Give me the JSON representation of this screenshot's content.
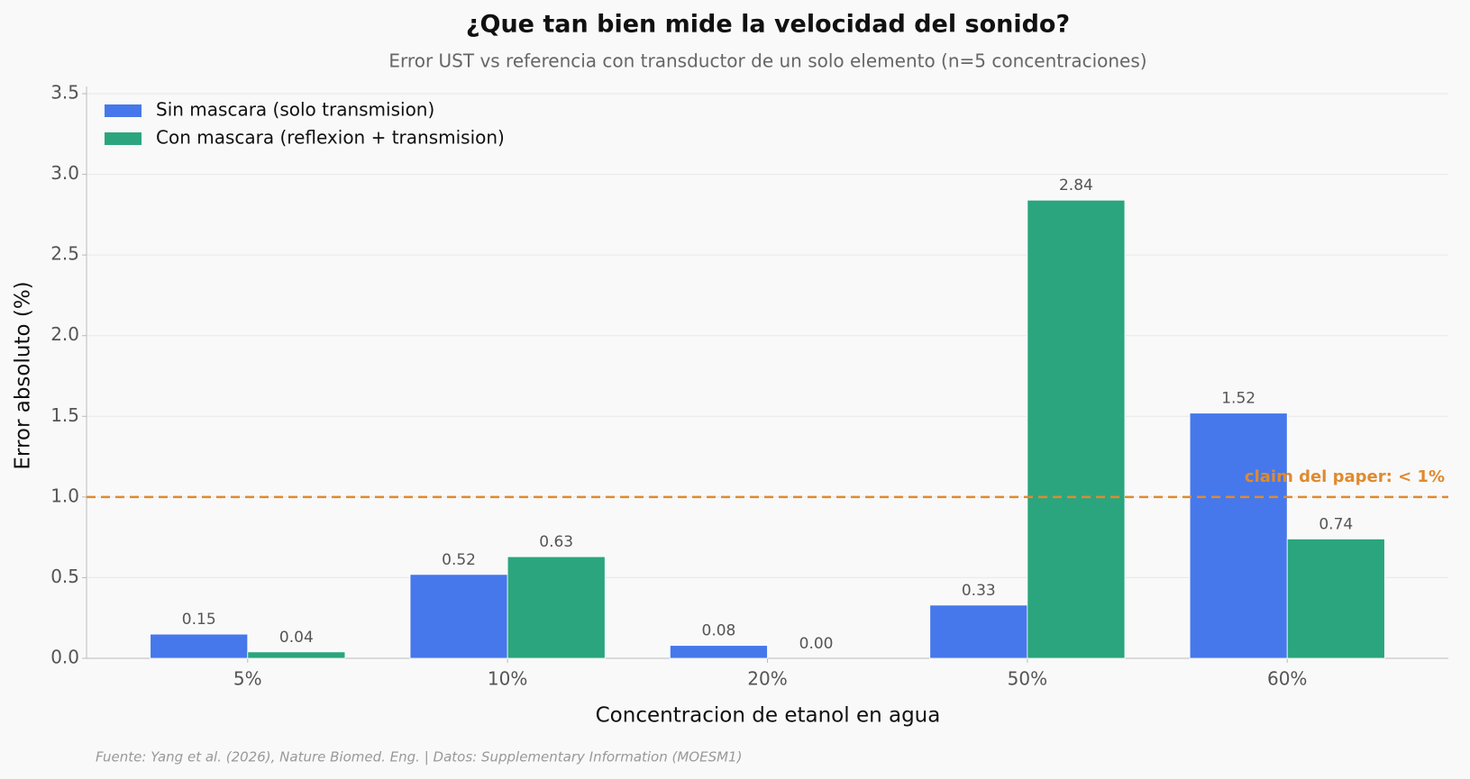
{
  "chart_data": {
    "type": "bar",
    "title": "¿Que tan bien mide la velocidad del sonido?",
    "subtitle": "Error UST vs referencia con transductor de un solo elemento (n=5 concentraciones)",
    "x_label": "Concentracion de etanol en agua",
    "y_label": "Error absoluto (%)",
    "categories": [
      "5%",
      "10%",
      "20%",
      "50%",
      "60%"
    ],
    "series": [
      {
        "name": "Sin mascara (solo transmision)",
        "color": "#4678eb",
        "values": [
          0.15,
          0.52,
          0.08,
          0.33,
          1.52
        ],
        "value_labels": [
          "0.15",
          "0.52",
          "0.08",
          "0.33",
          "1.52"
        ]
      },
      {
        "name": "Con mascara (reflexion + transmision)",
        "color": "#2ba57e",
        "values": [
          0.04,
          0.63,
          0,
          2.84,
          0.74
        ],
        "value_labels": [
          "0.04",
          "0.63",
          "0.00",
          "2.84",
          "0.74"
        ]
      }
    ],
    "ylim": [
      0,
      3.5
    ],
    "yticks": [
      {
        "value": 0,
        "label": "0.0"
      },
      0.5,
      {
        "value": 1,
        "label": "1.0"
      },
      1.5,
      {
        "value": 2,
        "label": "2.0"
      },
      2.5,
      {
        "value": 3,
        "label": "3.0"
      },
      3.5
    ],
    "grid": true,
    "legend": "upper-left",
    "reference_line": {
      "value": 1,
      "label": "claim del paper: < 1%",
      "color": "#e08a2e"
    },
    "source": "Fuente: Yang et al. (2026), Nature Biomed. Eng. | Datos: Supplementary Information (MOESM1)"
  }
}
